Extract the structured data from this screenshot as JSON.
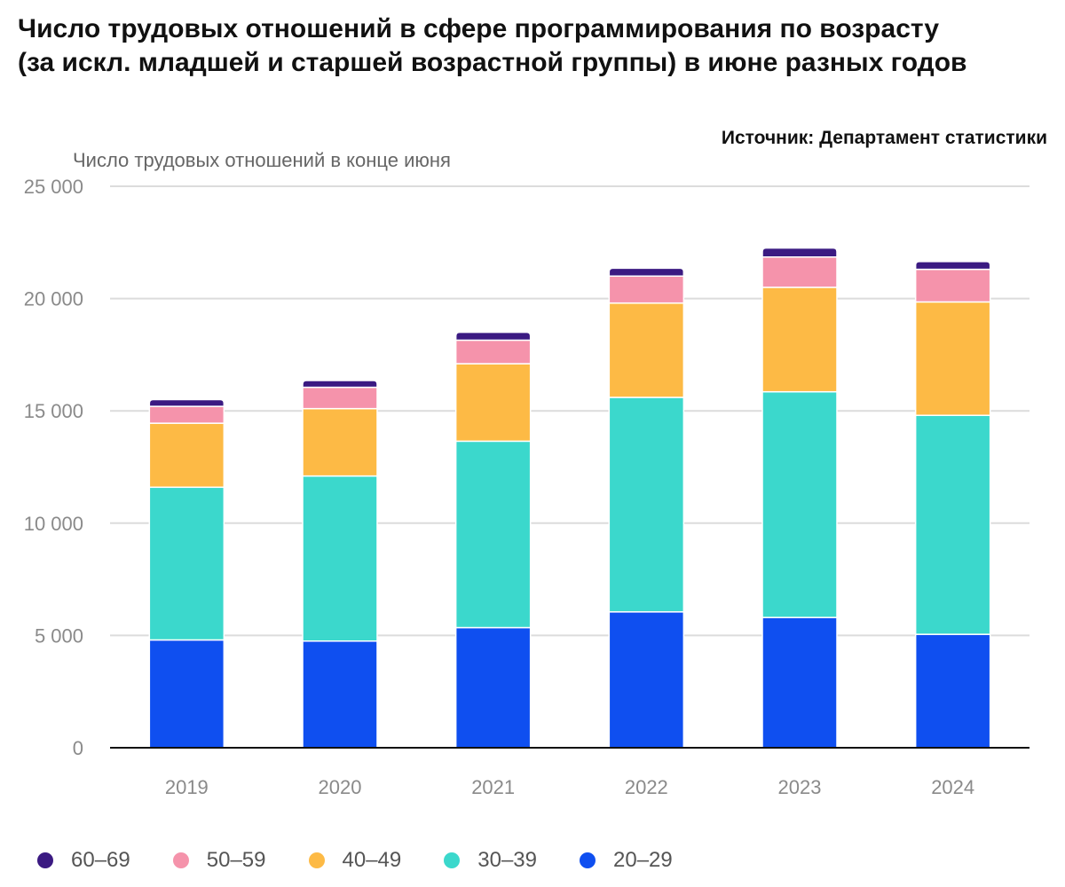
{
  "title": "Число трудовых отношений в сфере программирования по возрасту (за искл. младшей и старшей возрастной группы) в июне разных годов",
  "source": "Источник: Департамент статистики",
  "chart_data": {
    "type": "bar",
    "stacked": true,
    "ylabel": "Число трудовых отношений в конце июня",
    "xlabel": "",
    "ylim": [
      0,
      25000
    ],
    "yticks": [
      0,
      5000,
      10000,
      15000,
      20000,
      25000
    ],
    "ytick_labels": [
      "0",
      "5 000",
      "10 000",
      "15 000",
      "20 000",
      "25 000"
    ],
    "categories": [
      "2019",
      "2020",
      "2021",
      "2022",
      "2023",
      "2024"
    ],
    "series": [
      {
        "name": "20–29",
        "color": "#0f4ff0",
        "values": [
          4800,
          4750,
          5350,
          6050,
          5800,
          5050
        ]
      },
      {
        "name": "30–39",
        "color": "#3bd8cc",
        "values": [
          6800,
          7350,
          8300,
          9550,
          10050,
          9750
        ]
      },
      {
        "name": "40–49",
        "color": "#fdba45",
        "values": [
          2850,
          3000,
          3450,
          4200,
          4650,
          5050
        ]
      },
      {
        "name": "50–59",
        "color": "#f593ab",
        "values": [
          750,
          950,
          1050,
          1200,
          1350,
          1450
        ]
      },
      {
        "name": "60–69",
        "color": "#3b1a82",
        "values": [
          300,
          300,
          350,
          350,
          400,
          350
        ]
      }
    ],
    "legend": [
      "60–69",
      "50–59",
      "40–49",
      "30–39",
      "20–29"
    ],
    "grid": true,
    "legend_position": "bottom-left"
  }
}
